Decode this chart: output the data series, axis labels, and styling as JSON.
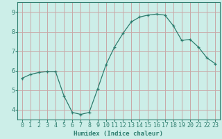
{
  "x": [
    0,
    1,
    2,
    3,
    4,
    5,
    6,
    7,
    8,
    9,
    10,
    11,
    12,
    13,
    14,
    15,
    16,
    17,
    18,
    19,
    20,
    21,
    22,
    23
  ],
  "y": [
    5.6,
    5.8,
    5.9,
    5.95,
    5.95,
    4.7,
    3.85,
    3.75,
    3.85,
    5.05,
    6.3,
    7.2,
    7.9,
    8.5,
    8.75,
    8.85,
    8.9,
    8.85,
    8.3,
    7.55,
    7.6,
    7.2,
    6.65,
    6.35
  ],
  "xlabel": "Humidex (Indice chaleur)",
  "line_color": "#2e7d6e",
  "marker": "+",
  "bg_color": "#cceee8",
  "plot_bg_color": "#cceee8",
  "grid_color": "#c8a8a8",
  "xlim": [
    -0.5,
    23.5
  ],
  "ylim": [
    3.5,
    9.5
  ],
  "yticks": [
    4,
    5,
    6,
    7,
    8,
    9
  ],
  "xticks": [
    0,
    1,
    2,
    3,
    4,
    5,
    6,
    7,
    8,
    9,
    10,
    11,
    12,
    13,
    14,
    15,
    16,
    17,
    18,
    19,
    20,
    21,
    22,
    23
  ],
  "tick_color": "#2e7d6e",
  "label_fontsize": 6.5,
  "tick_fontsize": 6,
  "xlabel_fontweight": "bold"
}
